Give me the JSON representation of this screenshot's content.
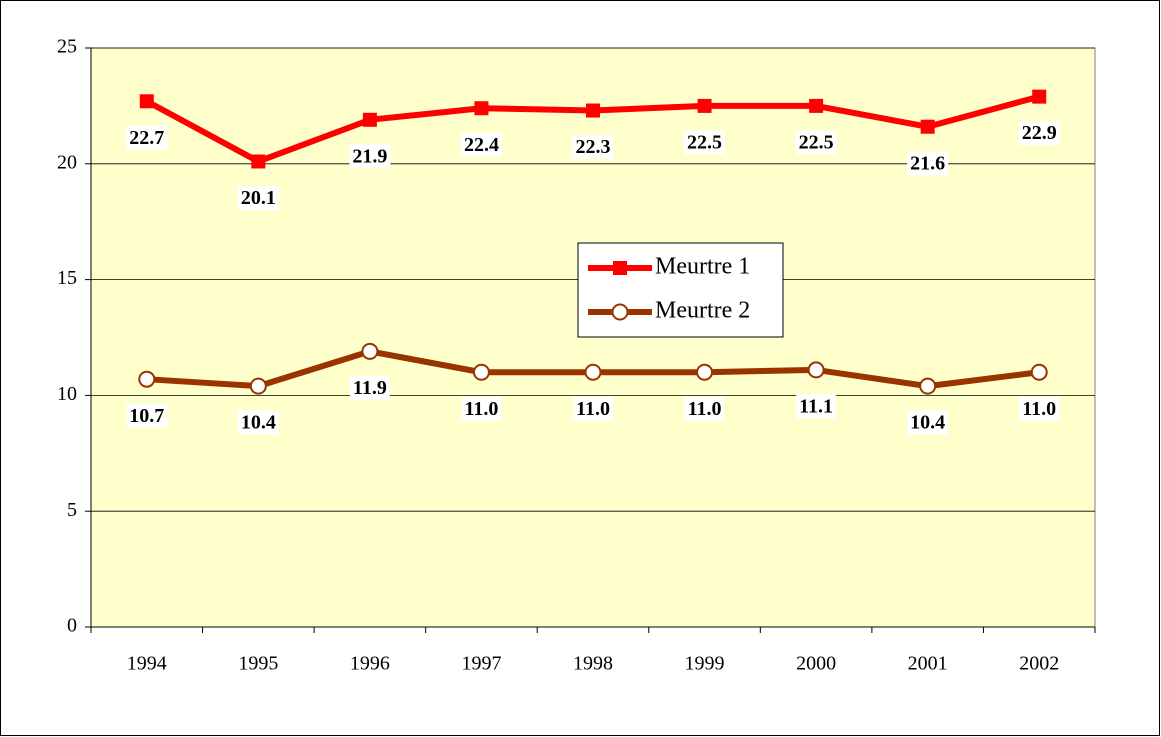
{
  "chart_data": {
    "type": "line",
    "categories": [
      "1994",
      "1995",
      "1996",
      "1997",
      "1998",
      "1999",
      "2000",
      "2001",
      "2002"
    ],
    "series": [
      {
        "name": "Meurtre 1",
        "color": "#ff0000",
        "marker": "square",
        "values": [
          22.7,
          20.1,
          21.9,
          22.4,
          22.3,
          22.5,
          22.5,
          21.6,
          22.9
        ]
      },
      {
        "name": "Meurtre 2",
        "color": "#993300",
        "marker": "circle",
        "values": [
          10.7,
          10.4,
          11.9,
          11.0,
          11.0,
          11.0,
          11.1,
          10.4,
          11.0
        ],
        "value_labels": [
          "10.7",
          "10.4",
          "11.9",
          "11.0",
          "11.0",
          "11.0",
          "11.1",
          "10.4",
          "11.0"
        ]
      }
    ],
    "ylim": [
      0,
      25
    ],
    "yticks": [
      0,
      5,
      10,
      15,
      20,
      25
    ],
    "grid": true,
    "plot_background": "#ffffcc"
  }
}
